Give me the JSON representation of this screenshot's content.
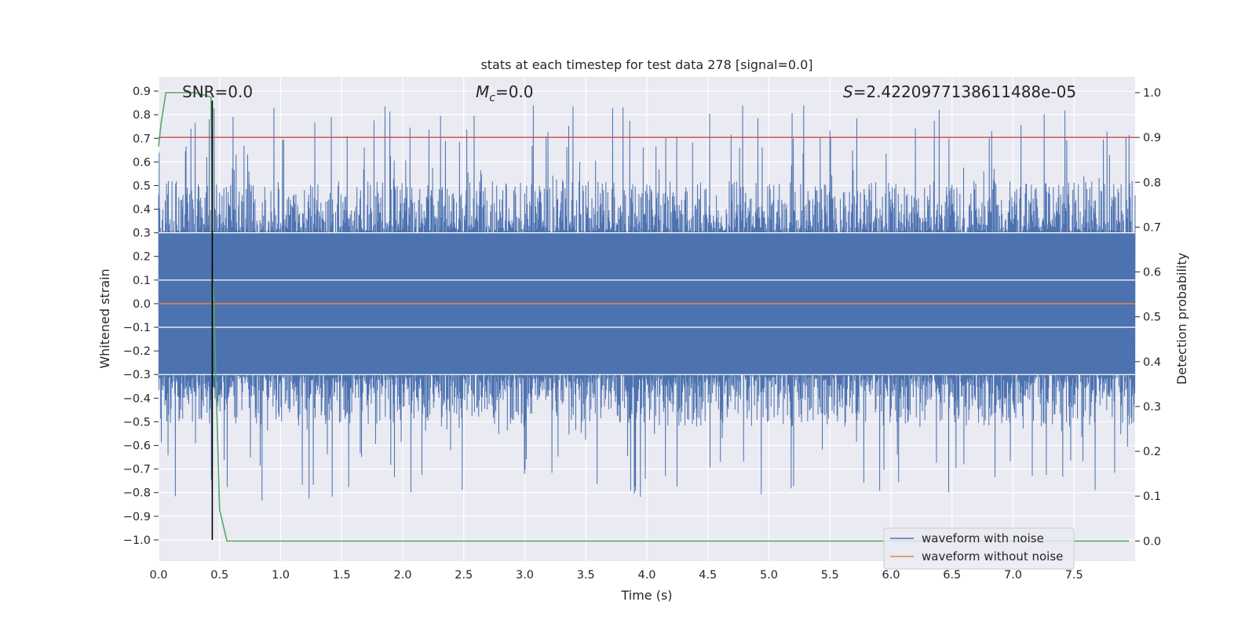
{
  "chart_data": {
    "type": "line",
    "title": "stats at each timestep for test data 278 [signal=0.0]",
    "xlabel": "Time (s)",
    "ylabel_left": "Whitened strain",
    "ylabel_right": "Detection probability",
    "xlim": [
      0.0,
      8.0
    ],
    "ylim_left": [
      -1.09,
      0.96
    ],
    "ylim_right": [
      -0.045,
      1.035
    ],
    "x_ticks": [
      0.0,
      0.5,
      1.0,
      1.5,
      2.0,
      2.5,
      3.0,
      3.5,
      4.0,
      4.5,
      5.0,
      5.5,
      6.0,
      6.5,
      7.0,
      7.5
    ],
    "x_tick_labels": [
      "0.0",
      "0.5",
      "1.0",
      "1.5",
      "2.0",
      "2.5",
      "3.0",
      "3.5",
      "4.0",
      "4.5",
      "5.0",
      "5.5",
      "6.0",
      "6.5",
      "7.0",
      "7.5"
    ],
    "y_left_ticks": [
      -1.0,
      -0.9,
      -0.8,
      -0.7,
      -0.6,
      -0.5,
      -0.4,
      -0.3,
      -0.2,
      -0.1,
      0.0,
      0.1,
      0.2,
      0.3,
      0.4,
      0.5,
      0.6,
      0.7,
      0.8,
      0.9
    ],
    "y_left_tick_labels": [
      "−1.0",
      "−0.9",
      "−0.8",
      "−0.7",
      "−0.6",
      "−0.5",
      "−0.4",
      "−0.3",
      "−0.2",
      "−0.1",
      "0.0",
      "0.1",
      "0.2",
      "0.3",
      "0.4",
      "0.5",
      "0.6",
      "0.7",
      "0.8",
      "0.9"
    ],
    "y_right_ticks": [
      0.0,
      0.1,
      0.2,
      0.3,
      0.4,
      0.5,
      0.6,
      0.7,
      0.8,
      0.9,
      1.0
    ],
    "y_right_tick_labels": [
      "0.0",
      "0.1",
      "0.2",
      "0.3",
      "0.4",
      "0.5",
      "0.6",
      "0.7",
      "0.8",
      "0.9",
      "1.0"
    ],
    "grid": true,
    "annotations": {
      "snr": "SNR=0.0",
      "mc_symbol": "M",
      "mc_sub": "c",
      "mc_value": "=0.0",
      "s_symbol": "S",
      "s_value": "=2.4220977138611488e-05"
    },
    "legend": {
      "placement": "lower-right",
      "entries": [
        {
          "label": "waveform with noise",
          "color": "#4c72b0"
        },
        {
          "label": "waveform without noise",
          "color": "#dd8452"
        }
      ]
    },
    "series": [
      {
        "name": "waveform with noise",
        "axis": "left",
        "color": "#4c72b0",
        "kind": "noise",
        "x_range": [
          0.0,
          8.0
        ],
        "core_band": [
          -0.3,
          0.3
        ],
        "peak_range": [
          -1.0,
          0.86
        ]
      },
      {
        "name": "waveform without noise",
        "axis": "left",
        "color": "#dd8452",
        "x": [
          0.0,
          8.0
        ],
        "y": [
          0.0,
          0.0
        ]
      },
      {
        "axis": "right",
        "color": "#55a868",
        "x": [
          0.0,
          0.02,
          0.06,
          0.1,
          0.2,
          0.3,
          0.43,
          0.44,
          0.45,
          0.5,
          0.56,
          1.0,
          2.0,
          3.0,
          4.0,
          5.0,
          6.0,
          7.0,
          7.95
        ],
        "y": [
          0.88,
          0.93,
          1.0,
          1.0,
          1.0,
          1.0,
          0.99,
          0.6,
          0.55,
          0.07,
          0.0,
          0.0,
          0.0,
          0.0,
          0.0,
          0.0,
          0.0,
          0.0,
          0.0
        ]
      },
      {
        "axis": "right",
        "color": "#c44e52",
        "x": [
          0.0,
          8.0
        ],
        "y": [
          0.9,
          0.9
        ]
      },
      {
        "axis": "left",
        "color": "#000000",
        "x": [
          0.44,
          0.44
        ],
        "y": [
          -1.0,
          0.86
        ]
      }
    ]
  }
}
